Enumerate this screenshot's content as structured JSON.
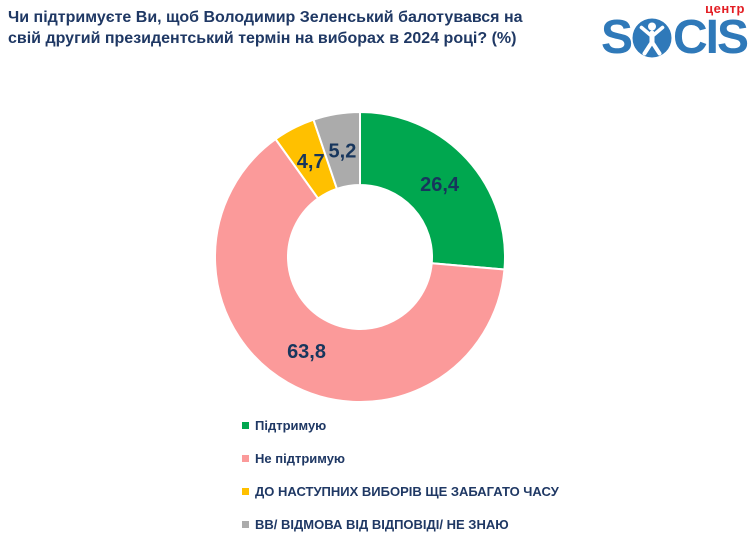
{
  "header": {
    "title_line1": "Чи підтримуєте Ви, щоб Володимир Зеленський балотувався на",
    "title_line2": "свій другий президентський термін на виборах в 2024 році? (%)"
  },
  "logo": {
    "part1": "S",
    "part2": "CIS",
    "tagline": "центр",
    "brand_blue": "#2F79B9",
    "brand_red": "#E31E24",
    "person_icon": "vitruvian-man-in-circle"
  },
  "chart_data": {
    "type": "pie",
    "subtype": "donut",
    "title": "Чи підтримуєте Ви, щоб Володимир Зеленський балотувався на свій другий президентський термін на виборах в 2024 році? (%)",
    "unit": "%",
    "start_angle_deg": 0,
    "direction": "clockwise",
    "legend_position": "bottom",
    "value_label_color": "#17365D",
    "slices": [
      {
        "label": "Підтримую",
        "value": 26.4,
        "display": "26,4",
        "color": "#00A74F"
      },
      {
        "label": "Не підтримую",
        "value": 63.8,
        "display": "63,8",
        "color": "#FB9A9A"
      },
      {
        "label": "ДО НАСТУПНИХ ВИБОРІВ ЩЕ ЗАБАГАТО ЧАСУ",
        "value": 4.7,
        "display": "4,7",
        "color": "#FFC000"
      },
      {
        "label": "ВВ/ ВІДМОВА ВІД ВІДПОВІДІ/ НЕ ЗНАЮ",
        "value": 5.2,
        "display": "5,2",
        "color": "#ABABAB"
      }
    ]
  }
}
